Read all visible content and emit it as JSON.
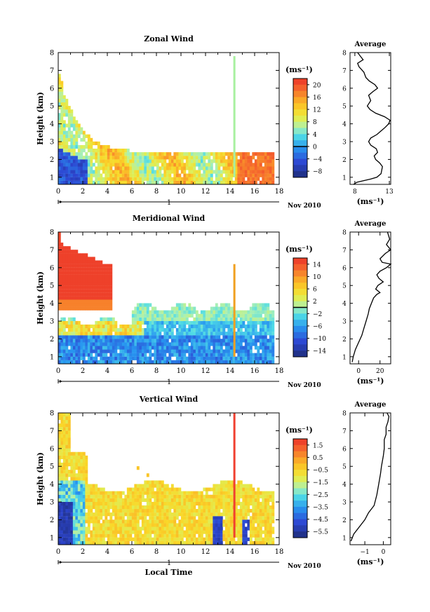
{
  "figure": {
    "date_label": "Nov 2010",
    "xlabel": "Local Time",
    "ylabel": "Height (km)",
    "unit_label": "(ms⁻¹)",
    "average_title": "Average",
    "day_marker": "1"
  },
  "chart_data": [
    {
      "type": "heatmap",
      "title": "Zonal Wind",
      "xlabel": "",
      "ylabel": "Height (km)",
      "x_ticks": [
        0,
        2,
        4,
        6,
        8,
        10,
        12,
        14,
        16,
        18
      ],
      "y_ticks": [
        1,
        2,
        3,
        4,
        5,
        6,
        7,
        8
      ],
      "xlim": [
        0,
        18
      ],
      "ylim": [
        0.6,
        8
      ],
      "colorbar": {
        "label": "(ms⁻¹)",
        "ticks": [
          20,
          16,
          12,
          8,
          4,
          0,
          -4,
          -8
        ],
        "range": [
          -10,
          22
        ],
        "zero_line": 0
      },
      "average_profile": {
        "title": "Average",
        "xlabel": "(ms⁻¹)",
        "x_ticks": [
          8,
          13
        ],
        "xlim": [
          7.3,
          13.2
        ],
        "points": [
          [
            7.8,
            0.6
          ],
          [
            8.3,
            0.72
          ],
          [
            9.2,
            0.8
          ],
          [
            10.3,
            0.9
          ],
          [
            11.2,
            1.0
          ],
          [
            11.8,
            1.2
          ],
          [
            11.9,
            1.4
          ],
          [
            12.0,
            1.6
          ],
          [
            11.6,
            1.8
          ],
          [
            11.0,
            2.0
          ],
          [
            10.8,
            2.2
          ],
          [
            11.3,
            2.4
          ],
          [
            11.1,
            2.6
          ],
          [
            10.3,
            2.8
          ],
          [
            10.0,
            3.0
          ],
          [
            10.3,
            3.2
          ],
          [
            11.2,
            3.4
          ],
          [
            11.8,
            3.6
          ],
          [
            12.4,
            3.8
          ],
          [
            12.9,
            4.0
          ],
          [
            13.1,
            4.2
          ],
          [
            12.3,
            4.4
          ],
          [
            11.0,
            4.6
          ],
          [
            10.2,
            4.8
          ],
          [
            9.8,
            5.0
          ],
          [
            10.3,
            5.3
          ],
          [
            10.0,
            5.6
          ],
          [
            10.6,
            5.8
          ],
          [
            11.3,
            6.0
          ],
          [
            10.9,
            6.2
          ],
          [
            10.1,
            6.4
          ],
          [
            9.6,
            6.6
          ],
          [
            9.3,
            6.9
          ],
          [
            8.6,
            7.2
          ],
          [
            8.4,
            7.4
          ],
          [
            9.2,
            7.6
          ],
          [
            8.8,
            7.8
          ],
          [
            8.4,
            8.0
          ]
        ]
      }
    },
    {
      "type": "heatmap",
      "title": "Meridional Wind",
      "xlabel": "",
      "ylabel": "Height (km)",
      "x_ticks": [
        0,
        2,
        4,
        6,
        8,
        10,
        12,
        14,
        16,
        18
      ],
      "y_ticks": [
        1,
        2,
        3,
        4,
        5,
        6,
        7,
        8
      ],
      "xlim": [
        0,
        18
      ],
      "ylim": [
        0.6,
        8
      ],
      "colorbar": {
        "label": "(ms⁻¹)",
        "ticks": [
          14,
          10,
          6,
          2,
          -2,
          -6,
          -10,
          -14
        ],
        "range": [
          -16,
          16
        ],
        "zero_line": 0
      },
      "average_profile": {
        "title": "Average",
        "xlabel": "(ms⁻¹)",
        "x_ticks": [
          0,
          20
        ],
        "xlim": [
          -8,
          30
        ],
        "points": [
          [
            -6,
            0.7
          ],
          [
            -5,
            1.0
          ],
          [
            -3,
            1.4
          ],
          [
            0,
            1.8
          ],
          [
            3,
            2.2
          ],
          [
            5,
            2.6
          ],
          [
            7,
            3.0
          ],
          [
            9,
            3.4
          ],
          [
            10,
            3.7
          ],
          [
            12,
            4.0
          ],
          [
            14,
            4.3
          ],
          [
            17,
            4.5
          ],
          [
            20,
            4.6
          ],
          [
            16,
            4.8
          ],
          [
            18,
            5.0
          ],
          [
            23,
            5.2
          ],
          [
            19,
            5.4
          ],
          [
            17,
            5.6
          ],
          [
            20,
            5.8
          ],
          [
            26,
            6.0
          ],
          [
            30,
            6.2
          ],
          [
            22,
            6.3
          ],
          [
            20,
            6.5
          ],
          [
            25,
            6.8
          ],
          [
            30,
            7.0
          ],
          [
            26,
            7.3
          ],
          [
            29,
            7.6
          ],
          [
            27,
            8.0
          ]
        ]
      }
    },
    {
      "type": "heatmap",
      "title": "Vertical Wind",
      "xlabel": "Local Time",
      "ylabel": "Height (km)",
      "x_ticks": [
        0,
        2,
        4,
        6,
        8,
        10,
        12,
        14,
        16,
        18
      ],
      "y_ticks": [
        1,
        2,
        3,
        4,
        5,
        6,
        7,
        8
      ],
      "xlim": [
        0,
        18
      ],
      "ylim": [
        0.6,
        8
      ],
      "colorbar": {
        "label": "(ms⁻¹)",
        "ticks": [
          1.5,
          0.5,
          -0.5,
          -1.5,
          -2.5,
          -3.5,
          -4.5,
          -5.5
        ],
        "range": [
          -6,
          2
        ]
      },
      "average_profile": {
        "title": "Average",
        "xlabel": "(ms⁻¹)",
        "x_ticks": [
          -1,
          0
        ],
        "xlim": [
          -1.8,
          0.4
        ],
        "points": [
          [
            -1.75,
            0.8
          ],
          [
            -1.6,
            1.2
          ],
          [
            -1.3,
            1.6
          ],
          [
            -1.0,
            2.0
          ],
          [
            -0.8,
            2.4
          ],
          [
            -0.5,
            2.8
          ],
          [
            -0.35,
            3.4
          ],
          [
            -0.25,
            4.0
          ],
          [
            -0.15,
            4.6
          ],
          [
            -0.1,
            5.0
          ],
          [
            0.0,
            5.6
          ],
          [
            0.05,
            6.0
          ],
          [
            0.05,
            6.5
          ],
          [
            0.15,
            6.8
          ],
          [
            0.15,
            7.2
          ],
          [
            0.25,
            7.5
          ],
          [
            0.3,
            7.8
          ],
          [
            0.2,
            8.0
          ]
        ]
      }
    }
  ]
}
